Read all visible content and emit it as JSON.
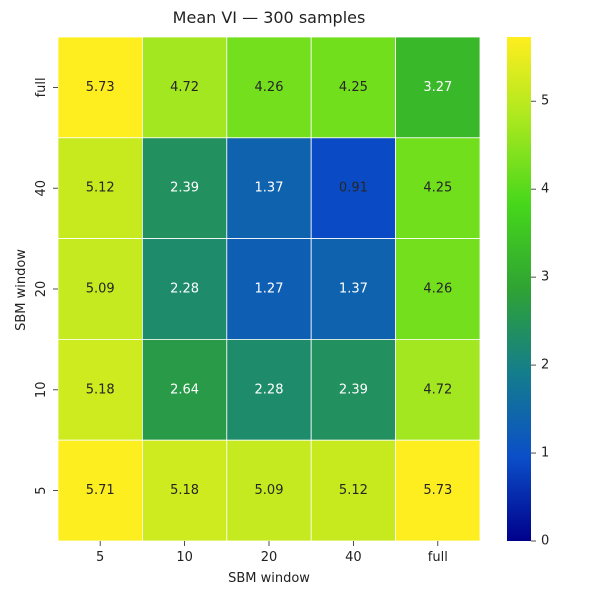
{
  "chart_data": {
    "type": "heatmap",
    "title": "Mean VI — 300 samples",
    "xlabel": "SBM window",
    "ylabel": "SBM window",
    "x_categories": [
      "5",
      "10",
      "20",
      "40",
      "full"
    ],
    "y_categories": [
      "full",
      "40",
      "20",
      "10",
      "5"
    ],
    "values": [
      [
        5.73,
        4.72,
        4.26,
        4.25,
        3.27
      ],
      [
        5.12,
        2.39,
        1.37,
        0.91,
        4.25
      ],
      [
        5.09,
        2.28,
        1.27,
        1.37,
        4.26
      ],
      [
        5.18,
        2.64,
        2.28,
        2.39,
        4.72
      ],
      [
        5.71,
        5.18,
        5.09,
        5.12,
        5.73
      ]
    ],
    "colorbar": {
      "min": 0,
      "max": 5.73,
      "ticks": [
        0,
        1,
        2,
        3,
        4,
        5
      ]
    },
    "colormap_stops": [
      "#00008b",
      "#0b4fc8",
      "#147d8c",
      "#2fa333",
      "#46d71b",
      "#a8e81f",
      "#ffee1f"
    ],
    "grid": false
  }
}
